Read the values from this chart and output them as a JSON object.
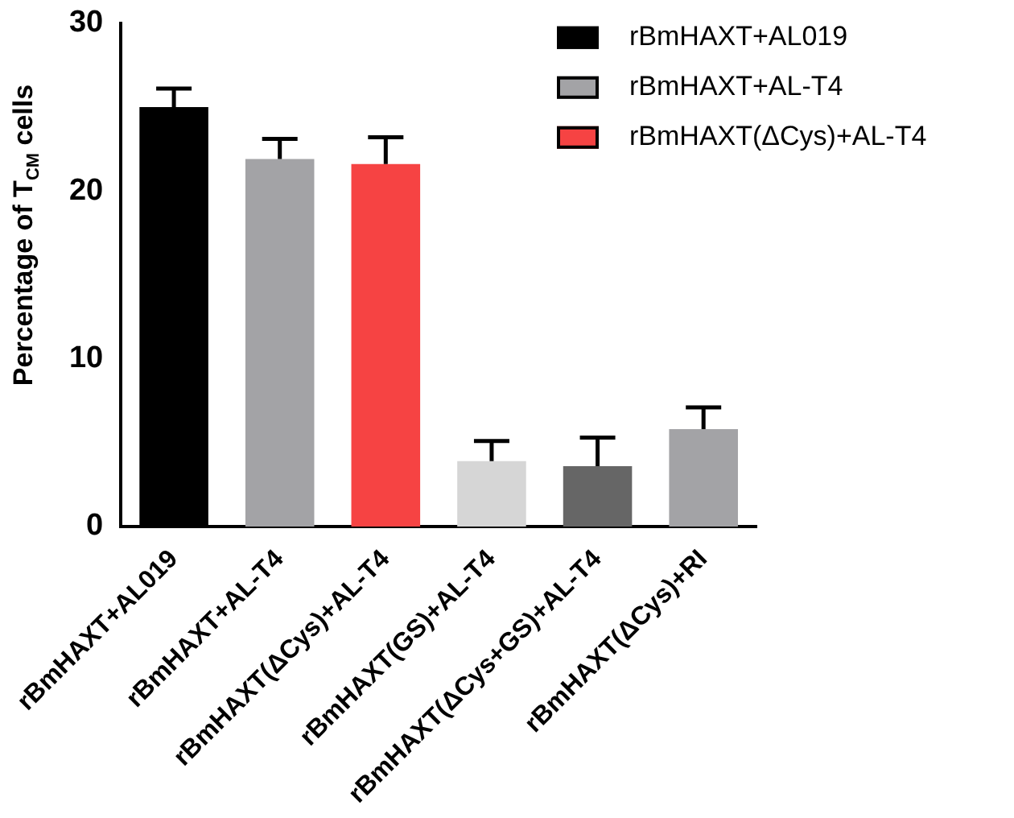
{
  "chart_data": {
    "type": "bar",
    "ylabel": "Percentage of T$_{CM}$ cells",
    "categories": [
      "rBmHAXT+AL019",
      "rBmHAXT+AL-T4",
      "rBmHAXT(ΔCys)+AL-T4",
      "rBmHAXT(GS)+AL-T4",
      "rBmHAXT(ΔCys+GS)+AL-T4",
      "rBmHAXT(ΔCys)+RI"
    ],
    "series": [
      {
        "name": "rBmHAXT+AL019",
        "color": "#000000",
        "values": [
          25,
          null,
          null,
          null,
          null,
          null
        ],
        "errors": [
          [
            25,
            26.1
          ],
          null,
          null,
          null,
          null,
          null
        ]
      },
      {
        "name": "rBmHAXT+AL-T4",
        "color": "#a3a3a6",
        "values": [
          null,
          21.9,
          null,
          null,
          null,
          null
        ],
        "errors": [
          null,
          [
            21.9,
            23.1
          ],
          null,
          null,
          null,
          null
        ]
      },
      {
        "name": "rBmHAXT(ΔCys)+AL-T4",
        "color": "#f64343",
        "values": [
          null,
          null,
          21.6,
          null,
          null,
          null
        ],
        "errors": [
          null,
          null,
          [
            21.6,
            23.2
          ],
          null,
          null,
          null
        ]
      },
      {
        "colors": [
          "#d6d6d6",
          "#d6d6d6",
          "#d6d6d6",
          "#d6d6d6",
          "#666666",
          "#a3a3a6"
        ],
        "values": [
          null,
          null,
          null,
          3.9,
          3.6,
          5.8
        ],
        "errors": [
          null,
          null,
          null,
          [
            3.9,
            5.1
          ],
          [
            3.6,
            5.3
          ],
          [
            5.8,
            7.1
          ]
        ]
      }
    ],
    "ylim": [
      0,
      30
    ],
    "yticks": [
      0,
      10,
      20,
      30
    ],
    "grid": false,
    "legend": "top right"
  }
}
